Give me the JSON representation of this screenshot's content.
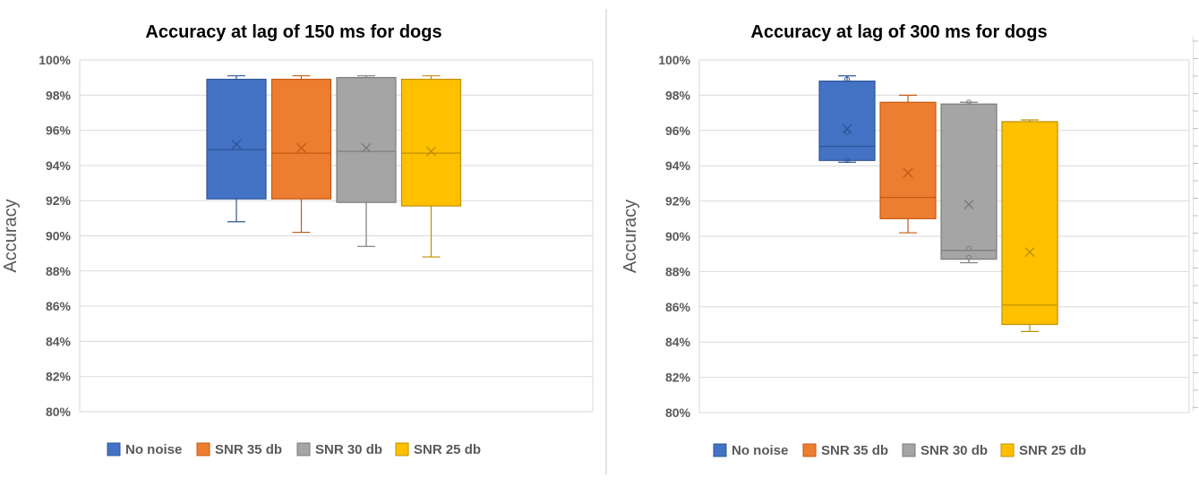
{
  "chart_data": [
    {
      "type": "box",
      "title": "Accuracy at lag of 150 ms for dogs",
      "xlabel": "",
      "ylabel": "Accuracy",
      "ylim": [
        80,
        100
      ],
      "ytick_labels": [
        "80%",
        "82%",
        "84%",
        "86%",
        "88%",
        "90%",
        "92%",
        "94%",
        "96%",
        "98%",
        "100%"
      ],
      "legend_position": "bottom",
      "series": [
        {
          "name": "No noise",
          "color": "#4472C4",
          "stroke": "#2F5597",
          "min": 90.8,
          "q1": 92.1,
          "median": 94.9,
          "q3": 98.9,
          "max": 99.1,
          "mean": 95.2,
          "outliers": []
        },
        {
          "name": "SNR 35 db",
          "color": "#ED7D31",
          "stroke": "#C55A11",
          "min": 90.2,
          "q1": 92.1,
          "median": 94.7,
          "q3": 98.9,
          "max": 99.1,
          "mean": 95.0,
          "outliers": []
        },
        {
          "name": "SNR 30 db",
          "color": "#A5A5A5",
          "stroke": "#7B7B7B",
          "min": 89.4,
          "q1": 91.9,
          "median": 94.8,
          "q3": 99.0,
          "max": 99.1,
          "mean": 95.0,
          "outliers": []
        },
        {
          "name": "SNR 25 db",
          "color": "#FFC000",
          "stroke": "#BF9000",
          "min": 88.8,
          "q1": 91.7,
          "median": 94.7,
          "q3": 98.9,
          "max": 99.1,
          "mean": 94.8,
          "outliers": []
        }
      ]
    },
    {
      "type": "box",
      "title": "Accuracy at lag of 300 ms for dogs",
      "xlabel": "",
      "ylabel": "Accuracy",
      "ylim": [
        80,
        100
      ],
      "ytick_labels": [
        "80%",
        "82%",
        "84%",
        "86%",
        "88%",
        "90%",
        "92%",
        "94%",
        "96%",
        "98%",
        "100%"
      ],
      "legend_position": "bottom",
      "series": [
        {
          "name": "No noise",
          "color": "#4472C4",
          "stroke": "#2F5597",
          "min": 94.2,
          "q1": 94.3,
          "median": 95.1,
          "q3": 98.8,
          "max": 99.1,
          "mean": 96.1,
          "outliers": [
            94.3,
            95.9,
            98.9
          ]
        },
        {
          "name": "SNR 35 db",
          "color": "#ED7D31",
          "stroke": "#C55A11",
          "min": 90.2,
          "q1": 91.0,
          "median": 92.2,
          "q3": 97.6,
          "max": 98.0,
          "mean": 93.6,
          "outliers": []
        },
        {
          "name": "SNR 30 db",
          "color": "#A5A5A5",
          "stroke": "#7B7B7B",
          "min": 88.5,
          "q1": 88.7,
          "median": 89.2,
          "q3": 97.5,
          "max": 97.6,
          "mean": 91.8,
          "outliers": [
            88.8,
            89.3,
            97.6
          ]
        },
        {
          "name": "SNR 25 db",
          "color": "#FFC000",
          "stroke": "#BF9000",
          "min": 84.6,
          "q1": 85.0,
          "median": 86.1,
          "q3": 96.5,
          "max": 96.6,
          "mean": 89.1,
          "outliers": []
        }
      ]
    }
  ]
}
